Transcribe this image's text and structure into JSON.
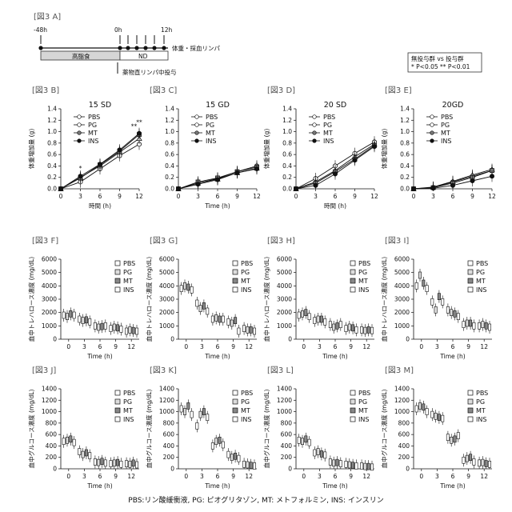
{
  "header": {
    "fig_label": "[図3 A]",
    "t_neg48": "-48h",
    "t_0": "0h",
    "t_12": "12h",
    "bar_fast": "高脂食",
    "bar_nd": "ND",
    "measure_label": "体重・採血リンパ",
    "drug_label": "薬物直リンパ中投与",
    "sig_title": "無投与群 vs 投与群",
    "sig_levels": "* P<0.05  ** P<0.01"
  },
  "footer": "PBS:リン酸緩衝液, PG: ピオグリタゾン, MT: メトフォルミン, INS: インスリン",
  "legend_labels": [
    "PBS",
    "PG",
    "MT",
    "INS"
  ],
  "chart_data": [
    {
      "panel": "[図3 B]",
      "type": "line",
      "title": "15 SD",
      "xlabel": "時間 (h)",
      "ylabel": "体重増加量 (g)",
      "x": [
        0,
        3,
        6,
        9,
        12
      ],
      "ylim": [
        0,
        1.4
      ],
      "yticks": [
        0,
        0.2,
        0.4,
        0.6,
        0.8,
        1.0,
        1.2,
        1.4
      ],
      "series": [
        {
          "name": "PBS",
          "values": [
            0,
            0.12,
            0.35,
            0.58,
            0.78
          ]
        },
        {
          "name": "PG",
          "values": [
            0,
            0.2,
            0.4,
            0.64,
            0.88
          ]
        },
        {
          "name": "MT",
          "values": [
            0,
            0.19,
            0.42,
            0.66,
            0.95
          ]
        },
        {
          "name": "INS",
          "values": [
            0,
            0.22,
            0.43,
            0.68,
            0.97
          ]
        }
      ],
      "annotations": [
        {
          "x": 3,
          "y": 0.32,
          "text": "*"
        },
        {
          "x": 12,
          "y": 1.13,
          "text": "**"
        },
        {
          "x": 11.2,
          "y": 1.06,
          "text": "**"
        }
      ]
    },
    {
      "panel": "[図3 C]",
      "type": "line",
      "title": "15 GD",
      "xlabel": "Time (h)",
      "ylabel": "",
      "x": [
        0,
        3,
        6,
        9,
        12
      ],
      "ylim": [
        0,
        1.4
      ],
      "yticks": [
        0,
        0.2,
        0.4,
        0.6,
        0.8,
        1.0,
        1.2,
        1.4
      ],
      "series": [
        {
          "name": "PBS",
          "values": [
            0,
            0.1,
            0.18,
            0.3,
            0.4
          ]
        },
        {
          "name": "PG",
          "values": [
            0,
            0.1,
            0.17,
            0.28,
            0.36
          ]
        },
        {
          "name": "MT",
          "values": [
            0,
            0.12,
            0.19,
            0.3,
            0.38
          ]
        },
        {
          "name": "INS",
          "values": [
            0,
            0.08,
            0.16,
            0.28,
            0.35
          ]
        }
      ]
    },
    {
      "panel": "[図3 D]",
      "type": "line",
      "title": "20 SD",
      "xlabel": "時間 (h)",
      "ylabel": "体重増加量 (g)",
      "x": [
        0,
        3,
        6,
        9,
        12
      ],
      "ylim": [
        0,
        1.4
      ],
      "yticks": [
        0,
        0.2,
        0.4,
        0.6,
        0.8,
        1.0,
        1.2,
        1.4
      ],
      "series": [
        {
          "name": "PBS",
          "values": [
            0,
            0.18,
            0.4,
            0.62,
            0.82
          ]
        },
        {
          "name": "PG",
          "values": [
            0,
            0.12,
            0.32,
            0.56,
            0.78
          ]
        },
        {
          "name": "MT",
          "values": [
            0,
            0.1,
            0.3,
            0.52,
            0.76
          ]
        },
        {
          "name": "INS",
          "values": [
            0,
            0.06,
            0.26,
            0.5,
            0.74
          ]
        }
      ]
    },
    {
      "panel": "[図3 E]",
      "type": "line",
      "title": "20GD",
      "xlabel": "",
      "ylabel": "体重増加量 (g)",
      "x": [
        0,
        3,
        6,
        9,
        12
      ],
      "ylim": [
        0,
        1.4
      ],
      "yticks": [
        0,
        0.2,
        0.4,
        0.6,
        0.8,
        1.0,
        1.2,
        1.4
      ],
      "series": [
        {
          "name": "PBS",
          "values": [
            0,
            0.02,
            0.12,
            0.22,
            0.32
          ]
        },
        {
          "name": "PG",
          "values": [
            0,
            0.03,
            0.13,
            0.24,
            0.34
          ]
        },
        {
          "name": "MT",
          "values": [
            0,
            0.02,
            0.1,
            0.2,
            0.32
          ]
        },
        {
          "name": "INS",
          "values": [
            0,
            0.01,
            0.06,
            0.14,
            0.22
          ]
        }
      ]
    },
    {
      "panel": "[図3 F]",
      "type": "box",
      "title": "",
      "xlabel": "Time (h)",
      "ylabel": "血中トレハロース濃度 (mg/dL)",
      "x": [
        0,
        3,
        6,
        9,
        12
      ],
      "ylim": [
        0,
        6000
      ],
      "yticks": [
        0,
        1000,
        2000,
        3000,
        4000,
        5000,
        6000
      ],
      "medians": [
        [
          1800,
          1700,
          1900,
          1800
        ],
        [
          1500,
          1400,
          1450,
          1300
        ],
        [
          1000,
          900,
          950,
          1000
        ],
        [
          800,
          900,
          850,
          750
        ],
        [
          600,
          700,
          650,
          600
        ]
      ]
    },
    {
      "panel": "[図3 G]",
      "type": "box",
      "title": "",
      "xlabel": "Time (h)",
      "ylabel": "血中トレハロース濃度 (mg/dL)",
      "x": [
        0,
        3,
        6,
        9,
        12
      ],
      "ylim": [
        0,
        6000
      ],
      "yticks": [
        0,
        1000,
        2000,
        3000,
        4000,
        5000,
        6000
      ],
      "medians": [
        [
          3800,
          4000,
          3900,
          3700
        ],
        [
          2700,
          2300,
          2500,
          2100
        ],
        [
          1500,
          1600,
          1500,
          1500
        ],
        [
          1300,
          1200,
          1400,
          600
        ],
        [
          800,
          700,
          700,
          600
        ]
      ]
    },
    {
      "panel": "[図3 H]",
      "type": "box",
      "title": "",
      "xlabel": "Time (h)",
      "ylabel": "血中トレハロース濃度 (mg/dL)",
      "x": [
        0,
        3,
        6,
        9,
        12
      ],
      "ylim": [
        0,
        6000
      ],
      "yticks": [
        0,
        1000,
        2000,
        3000,
        4000,
        5000,
        6000
      ],
      "medians": [
        [
          1800,
          1900,
          2000,
          1700
        ],
        [
          1400,
          1500,
          1500,
          1300
        ],
        [
          1100,
          900,
          1000,
          1100
        ],
        [
          800,
          900,
          850,
          700
        ],
        [
          700,
          650,
          700,
          650
        ]
      ]
    },
    {
      "panel": "[図3 I]",
      "type": "box",
      "title": "",
      "xlabel": "Time (h)",
      "ylabel": "血中トレハロース濃度 (mg/dL)",
      "x": [
        0,
        3,
        6,
        9,
        12
      ],
      "ylim": [
        0,
        6000
      ],
      "yticks": [
        0,
        1000,
        2000,
        3000,
        4000,
        5000,
        6000
      ],
      "medians": [
        [
          4000,
          4800,
          4200,
          3800
        ],
        [
          2800,
          2200,
          3200,
          2800
        ],
        [
          2200,
          2000,
          1900,
          1700
        ],
        [
          1100,
          1200,
          1200,
          1000
        ],
        [
          1000,
          1100,
          1000,
          900
        ]
      ]
    },
    {
      "panel": "[図3 J]",
      "type": "box",
      "title": "",
      "xlabel": "Time (h)",
      "ylabel": "血中グルコース濃度 (mg/dL)",
      "x": [
        0,
        3,
        6,
        9,
        12
      ],
      "ylim": [
        0,
        1400
      ],
      "yticks": [
        0,
        200,
        400,
        600,
        800,
        1000,
        1200,
        1400
      ],
      "medians": [
        [
          480,
          500,
          520,
          460
        ],
        [
          300,
          250,
          280,
          230
        ],
        [
          120,
          110,
          130,
          100
        ],
        [
          90,
          100,
          110,
          80
        ],
        [
          90,
          80,
          100,
          70
        ]
      ]
    },
    {
      "panel": "[図3 K]",
      "type": "box",
      "title": "",
      "xlabel": "Time (h)",
      "ylabel": "血中グルコース濃度 (mg/dL)",
      "x": [
        0,
        3,
        6,
        9,
        12
      ],
      "ylim": [
        0,
        1400
      ],
      "yticks": [
        0,
        200,
        400,
        600,
        800,
        1000,
        1200,
        1400
      ],
      "medians": [
        [
          1050,
          1000,
          1100,
          950
        ],
        [
          750,
          950,
          1000,
          900
        ],
        [
          400,
          480,
          500,
          420
        ],
        [
          250,
          200,
          220,
          180
        ],
        [
          80,
          70,
          60,
          50
        ]
      ]
    },
    {
      "panel": "[図3 L]",
      "type": "box",
      "title": "",
      "xlabel": "Time (h)",
      "ylabel": "血中グルコース濃度 (mg/dL)",
      "x": [
        0,
        3,
        6,
        9,
        12
      ],
      "ylim": [
        0,
        1400
      ],
      "yticks": [
        0,
        200,
        400,
        600,
        800,
        1000,
        1200,
        1400
      ],
      "medians": [
        [
          500,
          480,
          520,
          460
        ],
        [
          280,
          300,
          260,
          240
        ],
        [
          120,
          100,
          110,
          90
        ],
        [
          80,
          70,
          60,
          50
        ],
        [
          50,
          40,
          40,
          30
        ]
      ]
    },
    {
      "panel": "[図3 M]",
      "type": "box",
      "title": "",
      "xlabel": "Time (h)",
      "ylabel": "血中グルコース濃度 (mg/dL)",
      "x": [
        0,
        3,
        6,
        9,
        12
      ],
      "ylim": [
        0,
        1400
      ],
      "yticks": [
        0,
        200,
        400,
        600,
        800,
        1000,
        1200,
        1400
      ],
      "medians": [
        [
          1050,
          1100,
          1080,
          1000
        ],
        [
          950,
          920,
          900,
          880
        ],
        [
          550,
          500,
          520,
          580
        ],
        [
          150,
          180,
          200,
          120
        ],
        [
          100,
          110,
          90,
          80
        ]
      ]
    }
  ]
}
